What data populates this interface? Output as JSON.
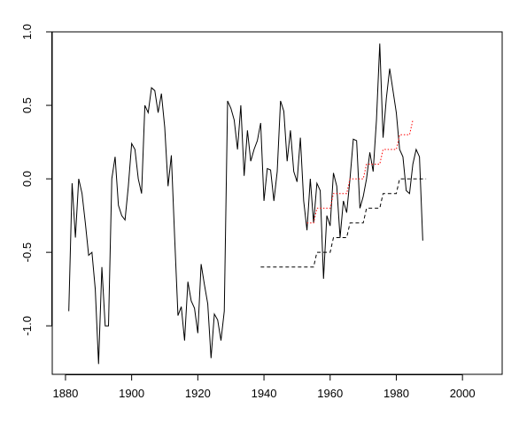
{
  "chart_data": {
    "type": "line",
    "title": "",
    "xlabel": "",
    "ylabel": "",
    "xlim": [
      1876,
      2012
    ],
    "ylim": [
      -1.33,
      1.0
    ],
    "grid": false,
    "legend": "none",
    "x_ticks": [
      1880,
      1900,
      1920,
      1940,
      1960,
      1980,
      2000
    ],
    "x_tick_labels": [
      "1880",
      "1900",
      "1920",
      "1940",
      "1960",
      "1980",
      "2000"
    ],
    "y_ticks": [
      -1.0,
      -0.5,
      0.0,
      0.5,
      1.0
    ],
    "y_tick_labels": [
      "-1.0",
      "-0.5",
      "0.0",
      "0.5",
      "1.0"
    ],
    "series": [
      {
        "style": "solid",
        "color": "#000000",
        "points": [
          [
            1881,
            -0.9
          ],
          [
            1882,
            -0.03
          ],
          [
            1883,
            -0.4
          ],
          [
            1884,
            0.0
          ],
          [
            1885,
            -0.1
          ],
          [
            1886,
            -0.3
          ],
          [
            1887,
            -0.52
          ],
          [
            1888,
            -0.5
          ],
          [
            1889,
            -0.75
          ],
          [
            1890,
            -1.26
          ],
          [
            1891,
            -0.6
          ],
          [
            1892,
            -1.0
          ],
          [
            1893,
            -1.0
          ],
          [
            1894,
            0.0
          ],
          [
            1895,
            0.15
          ],
          [
            1896,
            -0.18
          ],
          [
            1897,
            -0.25
          ],
          [
            1898,
            -0.28
          ],
          [
            1899,
            -0.05
          ],
          [
            1900,
            0.24
          ],
          [
            1901,
            0.2
          ],
          [
            1902,
            0.0
          ],
          [
            1903,
            -0.1
          ],
          [
            1904,
            0.5
          ],
          [
            1905,
            0.45
          ],
          [
            1906,
            0.62
          ],
          [
            1907,
            0.6
          ],
          [
            1908,
            0.45
          ],
          [
            1909,
            0.58
          ],
          [
            1910,
            0.35
          ],
          [
            1911,
            -0.05
          ],
          [
            1912,
            0.16
          ],
          [
            1913,
            -0.4
          ],
          [
            1914,
            -0.93
          ],
          [
            1915,
            -0.87
          ],
          [
            1916,
            -1.1
          ],
          [
            1917,
            -0.7
          ],
          [
            1918,
            -0.83
          ],
          [
            1919,
            -0.88
          ],
          [
            1920,
            -1.05
          ],
          [
            1921,
            -0.58
          ],
          [
            1922,
            -0.72
          ],
          [
            1923,
            -0.85
          ],
          [
            1924,
            -1.22
          ],
          [
            1925,
            -0.92
          ],
          [
            1926,
            -0.96
          ],
          [
            1927,
            -1.1
          ],
          [
            1928,
            -0.9
          ],
          [
            1929,
            0.53
          ],
          [
            1930,
            0.48
          ],
          [
            1931,
            0.4
          ],
          [
            1932,
            0.2
          ],
          [
            1933,
            0.5
          ],
          [
            1934,
            0.02
          ],
          [
            1935,
            0.33
          ],
          [
            1936,
            0.12
          ],
          [
            1937,
            0.2
          ],
          [
            1938,
            0.26
          ],
          [
            1939,
            0.38
          ],
          [
            1940,
            -0.15
          ],
          [
            1941,
            0.07
          ],
          [
            1942,
            0.06
          ],
          [
            1943,
            -0.15
          ],
          [
            1944,
            0.05
          ],
          [
            1945,
            0.53
          ],
          [
            1946,
            0.46
          ],
          [
            1947,
            0.12
          ],
          [
            1948,
            0.33
          ],
          [
            1949,
            0.05
          ],
          [
            1950,
            -0.02
          ],
          [
            1951,
            0.28
          ],
          [
            1952,
            -0.15
          ],
          [
            1953,
            -0.35
          ],
          [
            1954,
            0.0
          ],
          [
            1955,
            -0.3
          ],
          [
            1956,
            -0.03
          ],
          [
            1957,
            -0.08
          ],
          [
            1958,
            -0.68
          ],
          [
            1959,
            -0.25
          ],
          [
            1960,
            -0.32
          ],
          [
            1961,
            0.04
          ],
          [
            1962,
            -0.05
          ],
          [
            1963,
            -0.4
          ],
          [
            1964,
            -0.15
          ],
          [
            1965,
            -0.23
          ],
          [
            1966,
            0.0
          ],
          [
            1967,
            0.27
          ],
          [
            1968,
            0.26
          ],
          [
            1969,
            -0.2
          ],
          [
            1970,
            -0.12
          ],
          [
            1971,
            0.0
          ],
          [
            1972,
            0.18
          ],
          [
            1973,
            0.05
          ],
          [
            1974,
            0.4
          ],
          [
            1975,
            0.92
          ],
          [
            1976,
            0.28
          ],
          [
            1977,
            0.55
          ],
          [
            1978,
            0.75
          ],
          [
            1979,
            0.6
          ],
          [
            1980,
            0.45
          ],
          [
            1981,
            0.2
          ],
          [
            1982,
            0.15
          ],
          [
            1983,
            -0.08
          ],
          [
            1984,
            -0.1
          ],
          [
            1985,
            0.1
          ],
          [
            1986,
            0.2
          ],
          [
            1987,
            0.15
          ],
          [
            1988,
            -0.42
          ]
        ]
      },
      {
        "style": "dashed",
        "color": "#000000",
        "points": [
          [
            1939,
            -0.6
          ],
          [
            1955,
            -0.6
          ],
          [
            1956,
            -0.5
          ],
          [
            1960,
            -0.5
          ],
          [
            1961,
            -0.4
          ],
          [
            1965,
            -0.4
          ],
          [
            1966,
            -0.3
          ],
          [
            1970,
            -0.3
          ],
          [
            1971,
            -0.2
          ],
          [
            1975,
            -0.2
          ],
          [
            1976,
            -0.1
          ],
          [
            1980,
            -0.1
          ],
          [
            1981,
            0.0
          ],
          [
            1989,
            0.0
          ]
        ]
      },
      {
        "style": "dotted",
        "color": "#ff0000",
        "points": [
          [
            1953,
            -0.3
          ],
          [
            1955,
            -0.3
          ],
          [
            1956,
            -0.2
          ],
          [
            1960,
            -0.2
          ],
          [
            1961,
            -0.1
          ],
          [
            1965,
            -0.1
          ],
          [
            1966,
            0.0
          ],
          [
            1970,
            0.0
          ],
          [
            1971,
            0.1
          ],
          [
            1975,
            0.1
          ],
          [
            1976,
            0.2
          ],
          [
            1980,
            0.2
          ],
          [
            1981,
            0.3
          ],
          [
            1984,
            0.3
          ],
          [
            1985,
            0.4
          ]
        ]
      }
    ]
  }
}
